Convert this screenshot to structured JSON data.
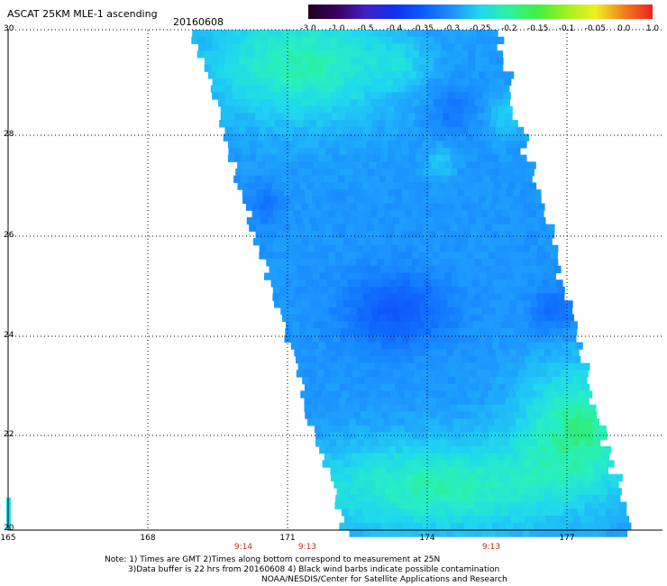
{
  "header": {
    "title": "ASCAT 25KM MLE-1 ascending",
    "date": "20160608"
  },
  "colorbar": {
    "labels": [
      "-3.0",
      "-1.0",
      "-0.5",
      "-0.4",
      "-0.35",
      "-0.3",
      "-0.25",
      "-0.2",
      "-0.15",
      "-0.1",
      "-0.05",
      "0.0",
      "1.0"
    ],
    "colors": [
      "#200020",
      "#3a0060",
      "#4020c0",
      "#1030f0",
      "#0a5cff",
      "#1e90ff",
      "#20d8f0",
      "#30f0a0",
      "#40f040",
      "#a0f020",
      "#f0f020",
      "#f08020",
      "#f02020"
    ]
  },
  "map": {
    "lat_labels": [
      "30",
      "28",
      "26",
      "24",
      "22",
      "20"
    ],
    "lon_labels": [
      "165",
      "168",
      "171",
      "174",
      "177"
    ],
    "time_labels": [
      "9:14",
      "9:13",
      "9:13"
    ],
    "lat_range": [
      20,
      30
    ],
    "lon_range": [
      165,
      179
    ]
  },
  "footer": {
    "note1": "Note: 1) Times are GMT 2)Times along bottom correspond to measurement at 25N",
    "note2": "3)Data buffer is 22 hrs from 20160608 4) Black wind barbs indicate possible contamination",
    "note3": "NOAA/NESDIS/Center for Satellite Applications and Research"
  }
}
